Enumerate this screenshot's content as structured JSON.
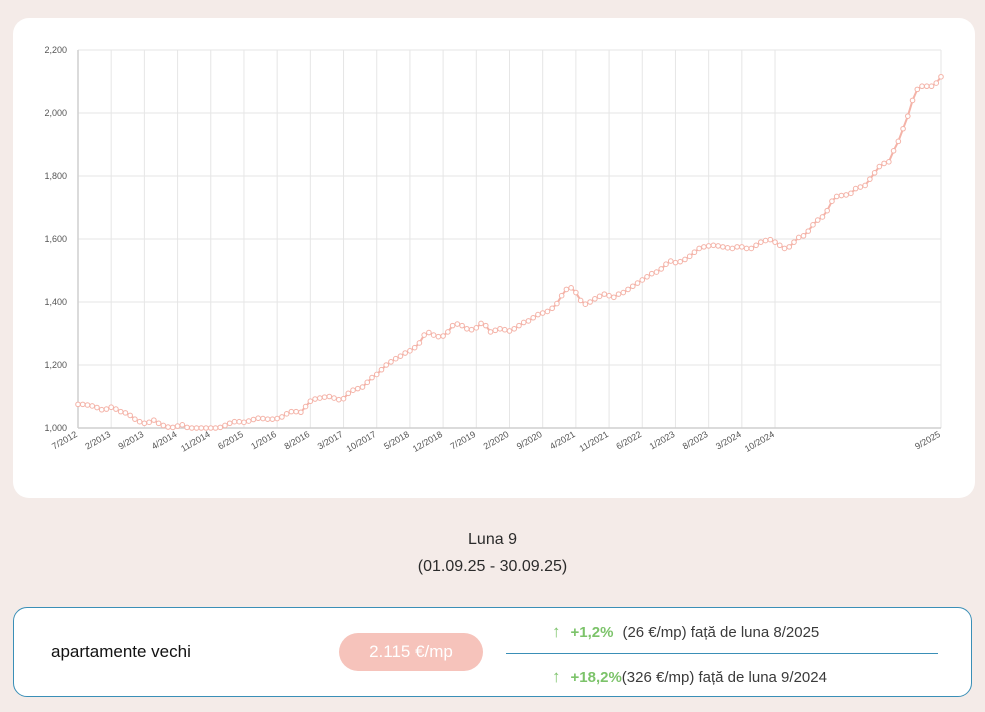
{
  "chart_data": {
    "type": "line",
    "title": "",
    "xlabel": "",
    "ylabel": "",
    "ylim": [
      1000,
      2200
    ],
    "y_ticks": [
      "1,000",
      "1,200",
      "1,400",
      "1,600",
      "1,800",
      "2,000",
      "2,200"
    ],
    "x_ticks": [
      "7/2012",
      "2/2013",
      "9/2013",
      "4/2014",
      "11/2014",
      "6/2015",
      "1/2016",
      "8/2016",
      "3/2017",
      "10/2017",
      "5/2018",
      "12/2018",
      "7/2019",
      "2/2020",
      "9/2020",
      "4/2021",
      "11/2021",
      "6/2022",
      "1/2023",
      "8/2023",
      "3/2024",
      "10/2024",
      "9/2025"
    ],
    "grid": true,
    "legend": "none",
    "line_color": "#f4b3a8",
    "x_start_month": "7/2012",
    "series": [
      {
        "values": [
          1075,
          1075,
          1073,
          1070,
          1065,
          1058,
          1060,
          1066,
          1060,
          1052,
          1048,
          1040,
          1028,
          1020,
          1015,
          1018,
          1025,
          1015,
          1008,
          1003,
          1002,
          1006,
          1010,
          1002,
          1000,
          1000,
          1000,
          1000,
          1000,
          1000,
          1002,
          1008,
          1015,
          1020,
          1020,
          1018,
          1022,
          1027,
          1031,
          1030,
          1028,
          1028,
          1030,
          1035,
          1045,
          1052,
          1052,
          1050,
          1068,
          1085,
          1092,
          1095,
          1098,
          1100,
          1095,
          1090,
          1093,
          1110,
          1120,
          1125,
          1130,
          1145,
          1160,
          1170,
          1185,
          1200,
          1210,
          1220,
          1228,
          1238,
          1245,
          1255,
          1270,
          1295,
          1303,
          1295,
          1290,
          1292,
          1305,
          1325,
          1330,
          1325,
          1315,
          1312,
          1318,
          1332,
          1325,
          1305,
          1310,
          1315,
          1312,
          1308,
          1315,
          1325,
          1335,
          1340,
          1350,
          1360,
          1365,
          1370,
          1380,
          1395,
          1420,
          1440,
          1445,
          1430,
          1405,
          1393,
          1400,
          1410,
          1418,
          1425,
          1420,
          1415,
          1425,
          1430,
          1440,
          1450,
          1460,
          1470,
          1480,
          1490,
          1495,
          1505,
          1520,
          1530,
          1525,
          1528,
          1535,
          1545,
          1558,
          1570,
          1575,
          1578,
          1580,
          1578,
          1575,
          1572,
          1570,
          1575,
          1575,
          1570,
          1570,
          1580,
          1590,
          1595,
          1598,
          1590,
          1580,
          1570,
          1575,
          1590,
          1605,
          1610,
          1625,
          1645,
          1660,
          1670,
          1690,
          1720,
          1735,
          1738,
          1740,
          1745,
          1760,
          1765,
          1770,
          1790,
          1810,
          1830,
          1840,
          1845,
          1880,
          1910,
          1950,
          1990,
          2040,
          2075,
          2085,
          2085,
          2085,
          2095,
          2115
        ]
      }
    ]
  },
  "period": {
    "title": "Luna 9",
    "range": "(01.09.25 - 30.09.25)"
  },
  "stats": {
    "category": "apartamente vechi",
    "price": "2.115 €/mp",
    "arrow_symbol": "↑",
    "monthly": {
      "percent": "+1,2%",
      "detail": "(26 €/mp) față de luna 8/2025"
    },
    "yearly": {
      "percent": "+18,2%",
      "detail": "(326 €/mp) față de luna 9/2024"
    },
    "accent_green": "#7cc36a",
    "border_blue": "#3a8fb7",
    "pill_color": "#f6c3bb"
  }
}
